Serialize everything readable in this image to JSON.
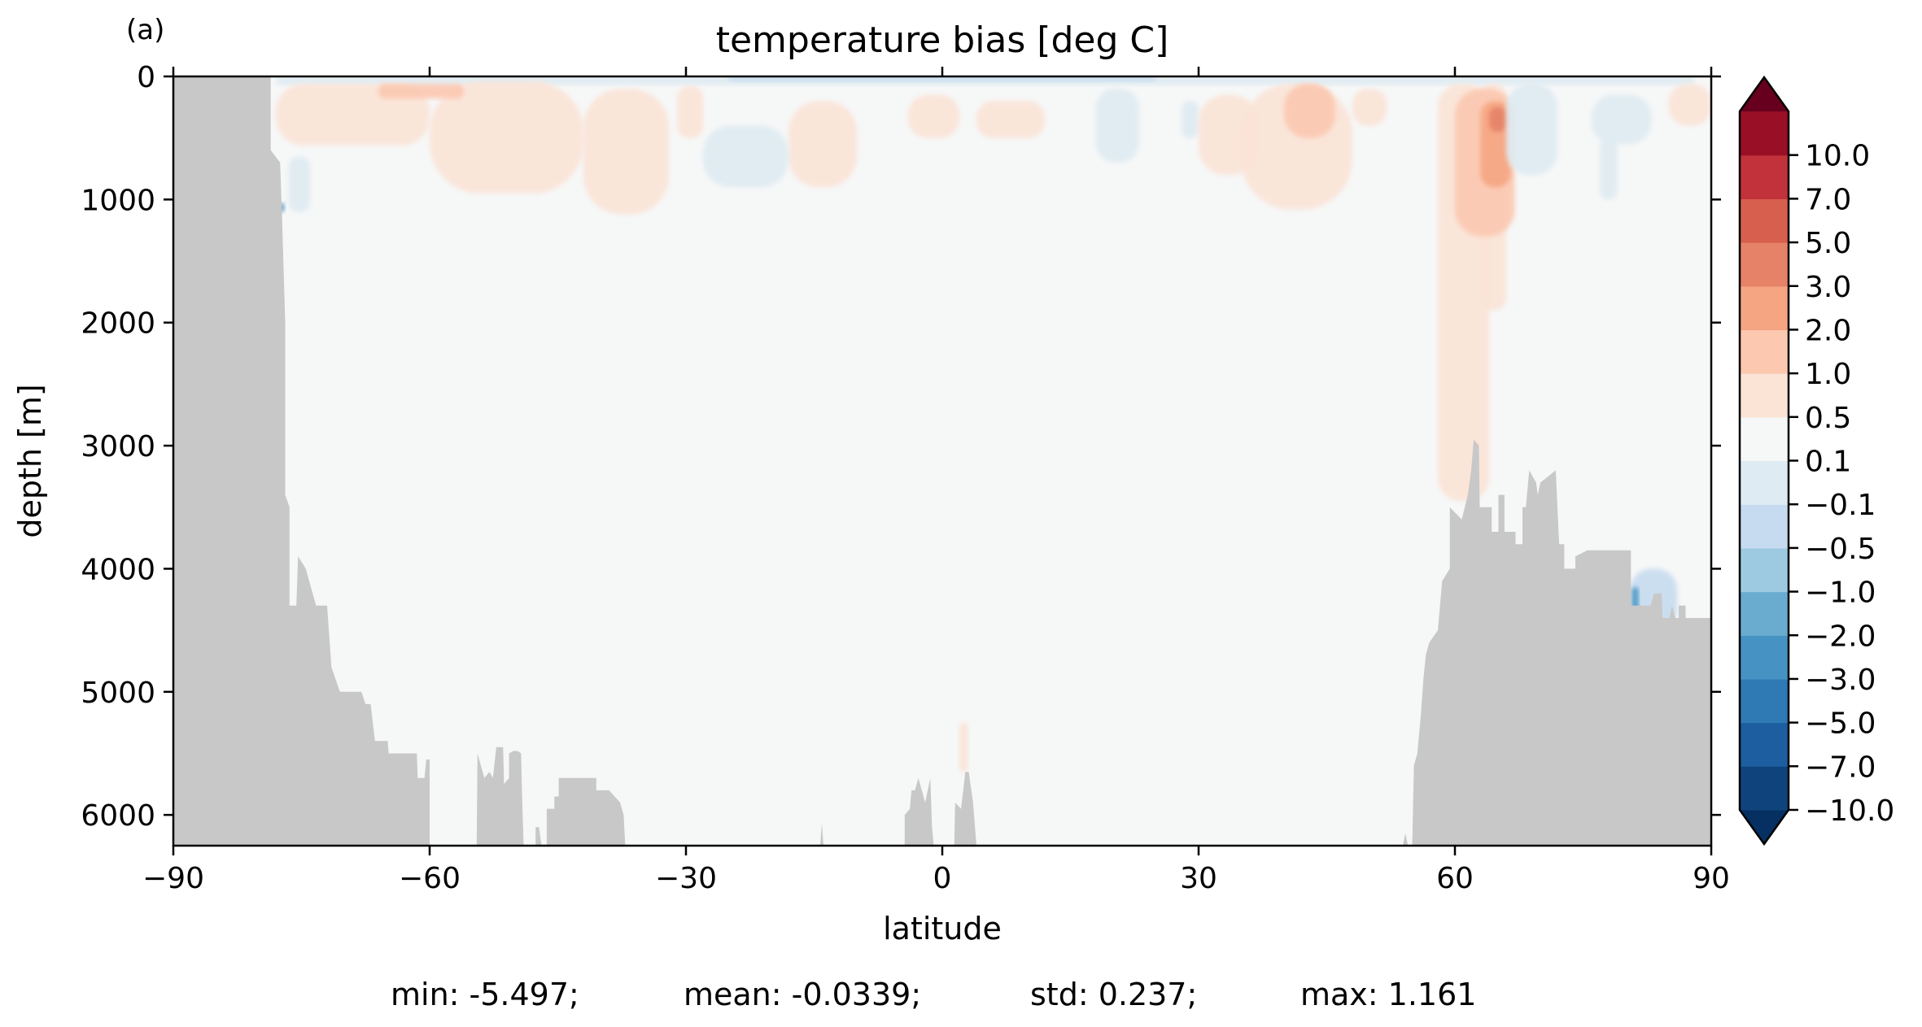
{
  "panel_label": "(a)",
  "stats": {
    "min": "min: -5.497;",
    "mean": "mean: -0.0339;",
    "std": "std: 0.237;",
    "max": "max: 1.161"
  },
  "colors": {
    "land": "#c8c8c8",
    "background": "#f6f7f7"
  },
  "chart_data": {
    "type": "heatmap",
    "title": "temperature bias [deg C]",
    "xlabel": "latitude",
    "ylabel": "depth [m]",
    "xlim": [
      -90,
      90
    ],
    "ylim": [
      6250,
      0
    ],
    "y_inverted": true,
    "grid": false,
    "xticks": [
      -90,
      -60,
      -30,
      0,
      30,
      60,
      90
    ],
    "xtick_labels": [
      "−90",
      "−60",
      "−30",
      "0",
      "30",
      "60",
      "90"
    ],
    "yticks": [
      0,
      1000,
      2000,
      3000,
      4000,
      5000,
      6000
    ],
    "ytick_labels": [
      "0",
      "1000",
      "2000",
      "3000",
      "4000",
      "5000",
      "6000"
    ],
    "colorbar": {
      "position": "right",
      "extend": "both",
      "levels": [
        -10,
        -7,
        -5,
        -3,
        -2,
        -1,
        -0.5,
        -0.1,
        0.1,
        0.5,
        1,
        2,
        3,
        5,
        7,
        10
      ],
      "tick_labels": [
        "−10.0",
        "−7.0",
        "−5.0",
        "−3.0",
        "−2.0",
        "−1.0",
        "−0.5",
        "−0.1",
        "0.1",
        "0.5",
        "1.0",
        "2.0",
        "3.0",
        "5.0",
        "7.0",
        "10.0"
      ],
      "colors": [
        "#0f437b",
        "#1c5e9f",
        "#2f79b5",
        "#4693c3",
        "#6aacd0",
        "#9ecae1",
        "#c6dbef",
        "#deebf2",
        "#f6f7f7",
        "#fbe3d6",
        "#fcc8b0",
        "#f5a582",
        "#e58267",
        "#d6604d",
        "#c1323a",
        "#990f26"
      ],
      "under_color": "#053061",
      "over_color": "#67001f"
    },
    "bathymetry": {
      "south_land": [
        [
          -90,
          0
        ],
        [
          -78.6,
          0
        ],
        [
          -78.6,
          600
        ],
        [
          -77.5,
          700
        ],
        [
          -77.3,
          1100
        ],
        [
          -76.9,
          2000
        ],
        [
          -76.9,
          3400
        ],
        [
          -76.4,
          3500
        ],
        [
          -76.4,
          4300
        ],
        [
          -75.6,
          4300
        ],
        [
          -75.4,
          3900
        ],
        [
          -74.5,
          4000
        ],
        [
          -73.3,
          4300
        ],
        [
          -72,
          4300
        ],
        [
          -71.5,
          4800
        ],
        [
          -70.5,
          5000
        ],
        [
          -68,
          5000
        ],
        [
          -67.5,
          5100
        ],
        [
          -66.9,
          5100
        ],
        [
          -66.4,
          5400
        ],
        [
          -64.9,
          5400
        ],
        [
          -64.8,
          5500
        ],
        [
          -61.5,
          5500
        ],
        [
          -61.4,
          5700
        ],
        [
          -60.6,
          5700
        ],
        [
          -60.4,
          5550
        ],
        [
          -60,
          5550
        ],
        [
          -60,
          6250
        ],
        [
          -90,
          6250
        ]
      ],
      "seamounts": [
        [
          [
            -54.5,
            6250
          ],
          [
            -54.4,
            5500
          ],
          [
            -54,
            5600
          ],
          [
            -53.6,
            5700
          ],
          [
            -53,
            5650
          ],
          [
            -52.6,
            5700
          ],
          [
            -52.2,
            5450
          ],
          [
            -51.4,
            5450
          ],
          [
            -51.3,
            5750
          ],
          [
            -50.7,
            5700
          ],
          [
            -50.7,
            5500
          ],
          [
            -50.2,
            5480
          ],
          [
            -49.7,
            5480
          ],
          [
            -49.3,
            5500
          ],
          [
            -49.2,
            5800
          ],
          [
            -49,
            6250
          ]
        ],
        [
          [
            -47.6,
            6250
          ],
          [
            -47.6,
            6100
          ],
          [
            -47.2,
            6100
          ],
          [
            -46.9,
            6250
          ]
        ],
        [
          [
            -46.3,
            6250
          ],
          [
            -46.3,
            5950
          ],
          [
            -45.4,
            5950
          ],
          [
            -45.4,
            5850
          ],
          [
            -44.9,
            5850
          ],
          [
            -44.9,
            5700
          ],
          [
            -40.5,
            5700
          ],
          [
            -40.5,
            5800
          ],
          [
            -40.3,
            5800
          ],
          [
            -39,
            5800
          ],
          [
            -37.7,
            5900
          ],
          [
            -37.3,
            6000
          ],
          [
            -37.1,
            6250
          ]
        ],
        [
          [
            -14.3,
            6250
          ],
          [
            -14.1,
            6070
          ],
          [
            -13.9,
            6250
          ]
        ],
        [
          [
            -4.4,
            6250
          ],
          [
            -4.4,
            6000
          ],
          [
            -3.8,
            5950
          ],
          [
            -3.6,
            5800
          ],
          [
            -3.2,
            5800
          ],
          [
            -2.8,
            5700
          ],
          [
            -2,
            5900
          ],
          [
            -1.4,
            5700
          ],
          [
            -1.2,
            6100
          ],
          [
            -1,
            6250
          ]
        ],
        [
          [
            1.4,
            6250
          ],
          [
            1.5,
            5900
          ],
          [
            2.2,
            5950
          ],
          [
            2.7,
            5650
          ],
          [
            3.1,
            5650
          ],
          [
            3.6,
            5900
          ],
          [
            4,
            6250
          ]
        ]
      ],
      "north_land": [
        [
          53.9,
          6250
        ],
        [
          54.2,
          6150
        ],
        [
          54.5,
          6250
        ],
        [
          55,
          6250
        ],
        [
          55.2,
          5600
        ],
        [
          55.6,
          5500
        ],
        [
          56,
          5200
        ],
        [
          56.3,
          4900
        ],
        [
          56.6,
          4700
        ],
        [
          57,
          4600
        ],
        [
          58,
          4500
        ],
        [
          58.5,
          4100
        ],
        [
          59.4,
          4000
        ],
        [
          59.4,
          3500
        ],
        [
          60.8,
          3600
        ],
        [
          61.5,
          3400
        ],
        [
          61.9,
          3200
        ],
        [
          62.2,
          2950
        ],
        [
          62.8,
          3000
        ],
        [
          62.9,
          3500
        ],
        [
          64.3,
          3500
        ],
        [
          64.3,
          3700
        ],
        [
          65.1,
          3700
        ],
        [
          65.1,
          3400
        ],
        [
          65.8,
          3400
        ],
        [
          65.8,
          3700
        ],
        [
          67.1,
          3700
        ],
        [
          67.1,
          3800
        ],
        [
          67.9,
          3800
        ],
        [
          67.9,
          3500
        ],
        [
          68.3,
          3500
        ],
        [
          68.7,
          3200
        ],
        [
          69.5,
          3300
        ],
        [
          69.7,
          3400
        ],
        [
          70,
          3300
        ],
        [
          71.8,
          3200
        ],
        [
          72.2,
          3800
        ],
        [
          72.8,
          3800
        ],
        [
          72.8,
          4000
        ],
        [
          74.1,
          4000
        ],
        [
          74.1,
          3900
        ],
        [
          75.5,
          3850
        ],
        [
          80.6,
          3850
        ],
        [
          80.6,
          4300
        ],
        [
          82.9,
          4300
        ],
        [
          83.3,
          4200
        ],
        [
          84.2,
          4200
        ],
        [
          84.3,
          4400
        ],
        [
          85.1,
          4400
        ],
        [
          85.4,
          4300
        ],
        [
          85.8,
          4400
        ],
        [
          86.2,
          4400
        ],
        [
          86.2,
          4300
        ],
        [
          87,
          4300
        ],
        [
          87,
          4400
        ],
        [
          90,
          4400
        ],
        [
          90,
          6250
        ]
      ]
    }
  }
}
